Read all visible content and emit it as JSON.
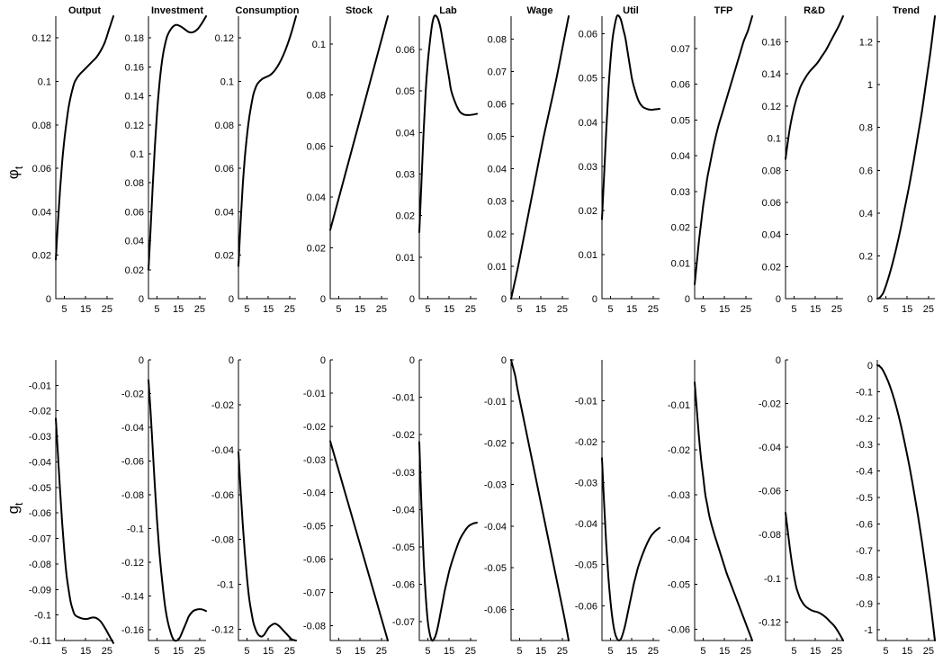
{
  "chart_data": [
    {
      "type": "line",
      "row": "phi",
      "title": "Output",
      "ylim": [
        0,
        0.13
      ],
      "yticks": [
        "0",
        "0.02",
        "0.04",
        "0.06",
        "0.08",
        "0.1",
        "0.12"
      ],
      "xticks": [
        "5",
        "15",
        "25"
      ],
      "xlim": [
        1,
        28
      ],
      "x": [
        1,
        2,
        3,
        4,
        5,
        6,
        7,
        8,
        9,
        10,
        12,
        14,
        16,
        18,
        20,
        22,
        24,
        26,
        28
      ],
      "y": [
        0.018,
        0.035,
        0.05,
        0.063,
        0.073,
        0.081,
        0.088,
        0.093,
        0.097,
        0.1,
        0.103,
        0.105,
        0.107,
        0.109,
        0.111,
        0.114,
        0.118,
        0.124,
        0.13
      ]
    },
    {
      "type": "line",
      "row": "phi",
      "title": "Investment",
      "ylim": [
        0,
        0.195
      ],
      "yticks": [
        "0",
        "0.02",
        "0.04",
        "0.06",
        "0.08",
        "0.1",
        "0.12",
        "0.14",
        "0.16",
        "0.18"
      ],
      "xticks": [
        "5",
        "15",
        "25"
      ],
      "xlim": [
        1,
        28
      ],
      "x": [
        1,
        2,
        3,
        4,
        5,
        6,
        7,
        8,
        9,
        10,
        12,
        14,
        16,
        18,
        20,
        22,
        24,
        26,
        28
      ],
      "y": [
        0.02,
        0.048,
        0.078,
        0.105,
        0.128,
        0.146,
        0.16,
        0.17,
        0.177,
        0.182,
        0.187,
        0.189,
        0.188,
        0.186,
        0.184,
        0.184,
        0.186,
        0.19,
        0.195
      ]
    },
    {
      "type": "line",
      "row": "phi",
      "title": "Consumption",
      "ylim": [
        0,
        0.13
      ],
      "yticks": [
        "0",
        "0.02",
        "0.04",
        "0.06",
        "0.08",
        "0.1",
        "0.12"
      ],
      "xticks": [
        "5",
        "15",
        "25"
      ],
      "xlim": [
        1,
        28
      ],
      "x": [
        1,
        2,
        3,
        4,
        5,
        6,
        7,
        8,
        9,
        10,
        12,
        14,
        16,
        18,
        20,
        22,
        24,
        26,
        28
      ],
      "y": [
        0.015,
        0.035,
        0.052,
        0.065,
        0.075,
        0.083,
        0.089,
        0.094,
        0.097,
        0.099,
        0.101,
        0.102,
        0.103,
        0.105,
        0.108,
        0.112,
        0.117,
        0.123,
        0.13
      ]
    },
    {
      "type": "line",
      "row": "phi",
      "title": "Stock",
      "ylim": [
        0,
        0.111
      ],
      "yticks": [
        "0",
        "0.02",
        "0.04",
        "0.06",
        "0.08",
        "0.1"
      ],
      "xticks": [
        "5",
        "15",
        "25"
      ],
      "xlim": [
        1,
        28
      ],
      "x": [
        1,
        28
      ],
      "y": [
        0.027,
        0.111
      ]
    },
    {
      "type": "line",
      "row": "phi",
      "title": "Lab",
      "ylim": [
        0,
        0.068
      ],
      "yticks": [
        "0",
        "0.01",
        "0.02",
        "0.03",
        "0.04",
        "0.05",
        "0.06"
      ],
      "xticks": [
        "5",
        "15",
        "25"
      ],
      "xlim": [
        1,
        28
      ],
      "x": [
        1,
        2,
        3,
        4,
        5,
        6,
        7,
        8,
        9,
        10,
        11,
        12,
        13,
        14,
        15,
        16,
        18,
        20,
        22,
        24,
        26,
        28
      ],
      "y": [
        0.016,
        0.028,
        0.04,
        0.05,
        0.057,
        0.062,
        0.066,
        0.068,
        0.068,
        0.067,
        0.065,
        0.062,
        0.059,
        0.056,
        0.053,
        0.05,
        0.047,
        0.045,
        0.0443,
        0.0442,
        0.0443,
        0.0445
      ]
    },
    {
      "type": "line",
      "row": "phi",
      "title": "Wage",
      "ylim": [
        0,
        0.087
      ],
      "yticks": [
        "0",
        "0.01",
        "0.02",
        "0.03",
        "0.04",
        "0.05",
        "0.06",
        "0.07",
        "0.08"
      ],
      "xticks": [
        "5",
        "15",
        "25"
      ],
      "xlim": [
        1,
        28
      ],
      "x": [
        1,
        4,
        7,
        10,
        13,
        16,
        19,
        22,
        25,
        28
      ],
      "y": [
        0,
        0.009,
        0.019,
        0.029,
        0.039,
        0.049,
        0.058,
        0.067,
        0.077,
        0.087
      ]
    },
    {
      "type": "line",
      "row": "phi",
      "title": "Util",
      "ylim": [
        0,
        0.064
      ],
      "yticks": [
        "0",
        "0.01",
        "0.02",
        "0.03",
        "0.04",
        "0.05",
        "0.06"
      ],
      "xticks": [
        "5",
        "15",
        "25"
      ],
      "xlim": [
        1,
        28
      ],
      "x": [
        1,
        2,
        3,
        4,
        5,
        6,
        7,
        8,
        9,
        10,
        11,
        12,
        13,
        14,
        15,
        16,
        18,
        20,
        22,
        24,
        26,
        28
      ],
      "y": [
        0.018,
        0.028,
        0.038,
        0.047,
        0.054,
        0.059,
        0.062,
        0.064,
        0.064,
        0.063,
        0.061,
        0.059,
        0.056,
        0.053,
        0.05,
        0.048,
        0.045,
        0.0435,
        0.043,
        0.0428,
        0.0429,
        0.043
      ]
    },
    {
      "type": "line",
      "row": "phi",
      "title": "TFP",
      "ylim": [
        0,
        0.079
      ],
      "yticks": [
        "0",
        "0.01",
        "0.02",
        "0.03",
        "0.04",
        "0.05",
        "0.06",
        "0.07"
      ],
      "xticks": [
        "5",
        "15",
        "25"
      ],
      "xlim": [
        1,
        28
      ],
      "x": [
        1,
        2,
        3,
        4,
        5,
        6,
        7,
        8,
        10,
        12,
        14,
        16,
        18,
        20,
        22,
        24,
        26,
        28
      ],
      "y": [
        0.004,
        0.01,
        0.016,
        0.021,
        0.026,
        0.03,
        0.034,
        0.037,
        0.043,
        0.048,
        0.052,
        0.056,
        0.06,
        0.064,
        0.068,
        0.072,
        0.075,
        0.079
      ]
    },
    {
      "type": "line",
      "row": "phi",
      "title": "R&D",
      "ylim": [
        0,
        0.176
      ],
      "yticks": [
        "0",
        "0.02",
        "0.04",
        "0.06",
        "0.08",
        "0.1",
        "0.12",
        "0.14",
        "0.16"
      ],
      "xticks": [
        "5",
        "15",
        "25"
      ],
      "xlim": [
        1,
        28
      ],
      "x": [
        1,
        2,
        3,
        4,
        5,
        6,
        7,
        8,
        10,
        12,
        14,
        16,
        18,
        20,
        22,
        24,
        26,
        28
      ],
      "y": [
        0.087,
        0.097,
        0.106,
        0.113,
        0.119,
        0.124,
        0.128,
        0.132,
        0.137,
        0.141,
        0.144,
        0.147,
        0.151,
        0.155,
        0.16,
        0.165,
        0.17,
        0.176
      ]
    },
    {
      "type": "line",
      "row": "phi",
      "title": "Trend",
      "ylim": [
        0,
        1.32
      ],
      "yticks": [
        "0",
        "0.2",
        "0.4",
        "0.6",
        "0.8",
        "1",
        "1.2"
      ],
      "xticks": [
        "5",
        "15",
        "25"
      ],
      "xlim": [
        1,
        28
      ],
      "x": [
        1,
        2,
        3,
        4,
        6,
        8,
        10,
        12,
        14,
        16,
        18,
        20,
        22,
        24,
        26,
        28
      ],
      "y": [
        0,
        0.004,
        0.015,
        0.032,
        0.09,
        0.16,
        0.24,
        0.33,
        0.43,
        0.53,
        0.64,
        0.76,
        0.88,
        1.02,
        1.16,
        1.32
      ]
    },
    {
      "type": "line",
      "row": "g",
      "title": "",
      "ylim": [
        -0.11,
        0
      ],
      "yticks": [
        "-0.11",
        "-0.1",
        "-0.09",
        "-0.08",
        "-0.07",
        "-0.06",
        "-0.05",
        "-0.04",
        "-0.03",
        "-0.02",
        "-0.01"
      ],
      "xticks": [
        "5",
        "15",
        "25"
      ],
      "xlim": [
        1,
        28
      ],
      "x": [
        1,
        2,
        3,
        4,
        5,
        6,
        7,
        8,
        9,
        10,
        12,
        14,
        16,
        18,
        20,
        22,
        24,
        26,
        28
      ],
      "y": [
        -0.023,
        -0.037,
        -0.051,
        -0.064,
        -0.075,
        -0.084,
        -0.09,
        -0.095,
        -0.098,
        -0.1,
        -0.101,
        -0.1015,
        -0.1015,
        -0.101,
        -0.1012,
        -0.1025,
        -0.105,
        -0.108,
        -0.111
      ]
    },
    {
      "type": "line",
      "row": "g",
      "title": "",
      "ylim": [
        -0.1665,
        0
      ],
      "yticks": [
        "-0.16",
        "-0.14",
        "-0.12",
        "-0.1",
        "-0.08",
        "-0.06",
        "-0.04",
        "-0.02",
        "0"
      ],
      "xticks": [
        "5",
        "15",
        "25"
      ],
      "xlim": [
        1,
        28
      ],
      "x": [
        1,
        2,
        3,
        4,
        5,
        6,
        7,
        8,
        9,
        10,
        11,
        12,
        13,
        14,
        15,
        16,
        17,
        18,
        19,
        20,
        22,
        24,
        26,
        28
      ],
      "y": [
        -0.012,
        -0.031,
        -0.053,
        -0.075,
        -0.095,
        -0.112,
        -0.126,
        -0.138,
        -0.148,
        -0.155,
        -0.16,
        -0.164,
        -0.1663,
        -0.1666,
        -0.166,
        -0.164,
        -0.161,
        -0.158,
        -0.155,
        -0.152,
        -0.149,
        -0.148,
        -0.148,
        -0.149
      ]
    },
    {
      "type": "line",
      "row": "g",
      "title": "",
      "ylim": [
        -0.125,
        0
      ],
      "yticks": [
        "-0.12",
        "-0.1",
        "-0.08",
        "-0.06",
        "-0.04",
        "-0.02",
        "0"
      ],
      "xticks": [
        "5",
        "15",
        "25"
      ],
      "xlim": [
        1,
        28
      ],
      "x": [
        1,
        2,
        3,
        4,
        5,
        6,
        7,
        8,
        9,
        10,
        11,
        12,
        13,
        14,
        15,
        16,
        18,
        20,
        22,
        24,
        26,
        28
      ],
      "y": [
        -0.041,
        -0.058,
        -0.073,
        -0.086,
        -0.097,
        -0.106,
        -0.112,
        -0.117,
        -0.12,
        -0.122,
        -0.123,
        -0.1232,
        -0.1225,
        -0.121,
        -0.1195,
        -0.1185,
        -0.1175,
        -0.1185,
        -0.1205,
        -0.1225,
        -0.1245,
        -0.125
      ]
    },
    {
      "type": "line",
      "row": "g",
      "title": "",
      "ylim": [
        -0.0845,
        0
      ],
      "yticks": [
        "-0.08",
        "-0.07",
        "-0.06",
        "-0.05",
        "-0.04",
        "-0.03",
        "-0.02",
        "-0.01",
        "0"
      ],
      "xticks": [
        "5",
        "15",
        "25"
      ],
      "xlim": [
        1,
        28
      ],
      "x": [
        1,
        28
      ],
      "y": [
        -0.0245,
        -0.0845
      ]
    },
    {
      "type": "line",
      "row": "g",
      "title": "",
      "ylim": [
        -0.075,
        0
      ],
      "yticks": [
        "-0.07",
        "-0.06",
        "-0.05",
        "-0.04",
        "-0.03",
        "-0.02",
        "-0.01",
        "0"
      ],
      "xticks": [
        "5",
        "15",
        "25"
      ],
      "xlim": [
        1,
        28
      ],
      "x": [
        1,
        2,
        3,
        4,
        5,
        6,
        7,
        8,
        9,
        10,
        11,
        12,
        13,
        14,
        15,
        16,
        18,
        20,
        22,
        24,
        26,
        28
      ],
      "y": [
        -0.022,
        -0.039,
        -0.053,
        -0.063,
        -0.07,
        -0.0735,
        -0.075,
        -0.0745,
        -0.073,
        -0.0705,
        -0.0675,
        -0.0645,
        -0.0615,
        -0.059,
        -0.0565,
        -0.0545,
        -0.051,
        -0.048,
        -0.046,
        -0.0445,
        -0.0438,
        -0.0435
      ]
    },
    {
      "type": "line",
      "row": "g",
      "title": "",
      "ylim": [
        -0.0675,
        0
      ],
      "yticks": [
        "-0.06",
        "-0.05",
        "-0.04",
        "-0.03",
        "-0.02",
        "-0.01",
        "0"
      ],
      "xticks": [
        "5",
        "15",
        "25"
      ],
      "xlim": [
        1,
        28
      ],
      "x": [
        1,
        2,
        3,
        4,
        6,
        8,
        10,
        12,
        14,
        16,
        18,
        20,
        22,
        24,
        26,
        28
      ],
      "y": [
        0,
        -0.002,
        -0.004,
        -0.007,
        -0.012,
        -0.017,
        -0.022,
        -0.027,
        -0.032,
        -0.037,
        -0.042,
        -0.047,
        -0.052,
        -0.057,
        -0.062,
        -0.0675
      ]
    },
    {
      "type": "line",
      "row": "g",
      "title": "",
      "ylim": [
        -0.0685,
        0
      ],
      "yticks": [
        "-0.06",
        "-0.05",
        "-0.04",
        "-0.03",
        "-0.02",
        "-0.01"
      ],
      "xticks": [
        "5",
        "15",
        "25"
      ],
      "xlim": [
        1,
        28
      ],
      "x": [
        1,
        2,
        3,
        4,
        5,
        6,
        7,
        8,
        9,
        10,
        11,
        12,
        13,
        14,
        15,
        16,
        17,
        18,
        20,
        22,
        24,
        26,
        28
      ],
      "y": [
        -0.024,
        -0.035,
        -0.045,
        -0.053,
        -0.059,
        -0.0635,
        -0.0665,
        -0.068,
        -0.0685,
        -0.068,
        -0.0665,
        -0.0645,
        -0.062,
        -0.0595,
        -0.057,
        -0.0545,
        -0.0525,
        -0.0505,
        -0.0475,
        -0.045,
        -0.043,
        -0.0418,
        -0.041
      ]
    },
    {
      "type": "line",
      "row": "g",
      "title": "",
      "ylim": [
        -0.0625,
        0
      ],
      "yticks": [
        "-0.06",
        "-0.05",
        "-0.04",
        "-0.03",
        "-0.02",
        "-0.01"
      ],
      "xticks": [
        "5",
        "15",
        "25"
      ],
      "xlim": [
        1,
        28
      ],
      "x": [
        1,
        2,
        3,
        4,
        5,
        6,
        7,
        8,
        10,
        12,
        14,
        16,
        18,
        20,
        22,
        24,
        26,
        28
      ],
      "y": [
        -0.005,
        -0.011,
        -0.017,
        -0.022,
        -0.026,
        -0.03,
        -0.0325,
        -0.035,
        -0.0385,
        -0.0415,
        -0.0445,
        -0.0475,
        -0.05,
        -0.0525,
        -0.055,
        -0.0575,
        -0.06,
        -0.0625
      ]
    },
    {
      "type": "line",
      "row": "g",
      "title": "",
      "ylim": [
        -0.1285,
        0
      ],
      "yticks": [
        "-0.12",
        "-0.1",
        "-0.08",
        "-0.06",
        "-0.04",
        "-0.02",
        "0"
      ],
      "xticks": [
        "5",
        "15",
        "25"
      ],
      "xlim": [
        1,
        28
      ],
      "x": [
        1,
        2,
        3,
        4,
        5,
        6,
        7,
        8,
        10,
        12,
        14,
        16,
        18,
        20,
        22,
        24,
        26,
        28
      ],
      "y": [
        -0.07,
        -0.078,
        -0.086,
        -0.093,
        -0.099,
        -0.104,
        -0.107,
        -0.1095,
        -0.1125,
        -0.114,
        -0.115,
        -0.1155,
        -0.1165,
        -0.118,
        -0.12,
        -0.122,
        -0.125,
        -0.1285
      ]
    },
    {
      "type": "line",
      "row": "g",
      "title": "",
      "ylim": [
        -1.04,
        0.02
      ],
      "yticks": [
        "-1",
        "-0.9",
        "-0.8",
        "-0.7",
        "-0.6",
        "-0.5",
        "-0.4",
        "-0.3",
        "-0.2",
        "-0.1",
        "0"
      ],
      "xticks": [
        "5",
        "15",
        "25"
      ],
      "xlim": [
        1,
        28
      ],
      "x": [
        1,
        2,
        3,
        4,
        6,
        8,
        10,
        12,
        14,
        16,
        18,
        20,
        22,
        24,
        26,
        28
      ],
      "y": [
        0,
        -0.004,
        -0.012,
        -0.025,
        -0.06,
        -0.105,
        -0.16,
        -0.225,
        -0.3,
        -0.38,
        -0.47,
        -0.565,
        -0.67,
        -0.785,
        -0.905,
        -1.04
      ]
    }
  ],
  "row_labels": {
    "phi": {
      "symbol": "φ",
      "subscript": "t"
    },
    "g": {
      "symbol": "g",
      "subscript": "t"
    }
  }
}
